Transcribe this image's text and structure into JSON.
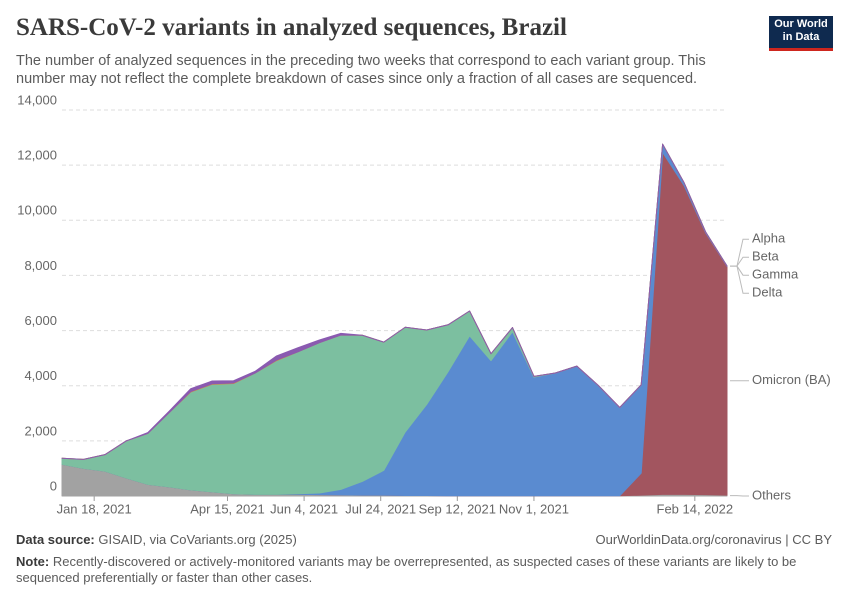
{
  "chart_data": {
    "type": "stacked_area",
    "title": "SARS-CoV-2 variants in analyzed sequences, Brazil",
    "subtitle": "The number of analyzed sequences in the preceding two weeks that correspond to each variant group. This number may not reflect the complete breakdown of cases since only a fraction of all cases are sequenced.",
    "logo": "Our World in Data",
    "source_label": "Data source:",
    "source": "GISAID, via CoVariants.org (2025)",
    "url": "OurWorldinData.org/coronavirus | CC BY",
    "note_label": "Note:",
    "note": "Recently-discovered or actively-monitored variants may be overrepresented, as suspected cases of these variants are likely to be sequenced preferentially or faster than other cases.",
    "x": [
      "2020-12-28",
      "2021-01-11",
      "2021-01-25",
      "2021-02-08",
      "2021-02-22",
      "2021-03-08",
      "2021-03-22",
      "2021-04-05",
      "2021-04-19",
      "2021-05-03",
      "2021-05-17",
      "2021-05-31",
      "2021-06-14",
      "2021-06-28",
      "2021-07-12",
      "2021-07-26",
      "2021-08-09",
      "2021-08-23",
      "2021-09-06",
      "2021-09-20",
      "2021-10-04",
      "2021-10-18",
      "2021-11-01",
      "2021-11-15",
      "2021-11-29",
      "2021-12-13",
      "2021-12-27",
      "2022-01-10",
      "2022-01-24",
      "2022-02-07",
      "2022-02-21",
      "2022-03-07"
    ],
    "xlim": [
      "2020-12-28",
      "2022-03-07"
    ],
    "xticks": [
      {
        "value": "2021-01-18",
        "label": "Jan 18, 2021"
      },
      {
        "value": "2021-04-15",
        "label": "Apr 15, 2021"
      },
      {
        "value": "2021-06-04",
        "label": "Jun 4, 2021"
      },
      {
        "value": "2021-07-24",
        "label": "Jul 24, 2021"
      },
      {
        "value": "2021-09-12",
        "label": "Sep 12, 2021"
      },
      {
        "value": "2021-11-01",
        "label": "Nov 1, 2021"
      },
      {
        "value": "2022-02-14",
        "label": "Feb 14, 2022"
      }
    ],
    "ylim": [
      0,
      14000
    ],
    "yticks": [
      0,
      {
        "value": 2000,
        "label": "2,000"
      },
      {
        "value": 4000,
        "label": "4,000"
      },
      {
        "value": 6000,
        "label": "6,000"
      },
      {
        "value": 8000,
        "label": "8,000"
      },
      {
        "value": 10000,
        "label": "10,000"
      },
      {
        "value": 12000,
        "label": "12,000"
      },
      {
        "value": 14000,
        "label": "14,000"
      }
    ],
    "grid": true,
    "series": [
      {
        "name": "Others",
        "color": "#a2a2a2",
        "label_color": "#6e6e6e",
        "values": [
          1150,
          1000,
          900,
          650,
          420,
          330,
          220,
          150,
          80,
          60,
          60,
          60,
          50,
          40,
          30,
          30,
          20,
          20,
          10,
          10,
          10,
          10,
          10,
          10,
          10,
          10,
          10,
          30,
          60,
          60,
          50,
          30
        ]
      },
      {
        "name": "Omicron (BA)",
        "color": "#a2555f",
        "label_color": "#883039",
        "values": [
          0,
          0,
          0,
          0,
          0,
          0,
          0,
          0,
          0,
          0,
          0,
          0,
          0,
          0,
          0,
          0,
          0,
          0,
          0,
          0,
          0,
          0,
          0,
          0,
          0,
          0,
          0,
          800,
          12400,
          11200,
          9500,
          8300
        ]
      },
      {
        "name": "Delta",
        "color": "#5a8bd0",
        "label_color": "#3a73b8",
        "values": [
          0,
          0,
          0,
          0,
          0,
          0,
          0,
          0,
          0,
          0,
          0,
          20,
          60,
          200,
          500,
          900,
          2300,
          3300,
          4500,
          5800,
          4900,
          5950,
          4300,
          4450,
          4700,
          4000,
          3200,
          3200,
          300,
          100,
          30,
          10
        ]
      },
      {
        "name": "Gamma",
        "color": "#7cbfa0",
        "label_color": "#3f9a79",
        "values": [
          220,
          330,
          600,
          1350,
          1850,
          2700,
          3550,
          3900,
          4000,
          4400,
          4850,
          5150,
          5450,
          5600,
          5300,
          4650,
          3800,
          2700,
          1700,
          900,
          250,
          150,
          30,
          0,
          0,
          0,
          0,
          0,
          0,
          0,
          0,
          0
        ]
      },
      {
        "name": "Beta",
        "color": "#d08a46",
        "label_color": "#b16214",
        "values": [
          0,
          0,
          0,
          0,
          0,
          0,
          20,
          20,
          20,
          0,
          20,
          0,
          0,
          0,
          0,
          0,
          0,
          0,
          0,
          0,
          0,
          0,
          0,
          0,
          0,
          0,
          0,
          0,
          0,
          0,
          0,
          0
        ]
      },
      {
        "name": "Alpha",
        "color": "#8a5ab0",
        "label_color": "#6d3e91",
        "values": [
          0,
          0,
          0,
          0,
          30,
          50,
          100,
          100,
          80,
          60,
          150,
          150,
          100,
          60,
          0,
          0,
          0,
          0,
          0,
          0,
          0,
          0,
          0,
          0,
          0,
          0,
          0,
          0,
          0,
          0,
          0,
          0
        ]
      }
    ]
  }
}
